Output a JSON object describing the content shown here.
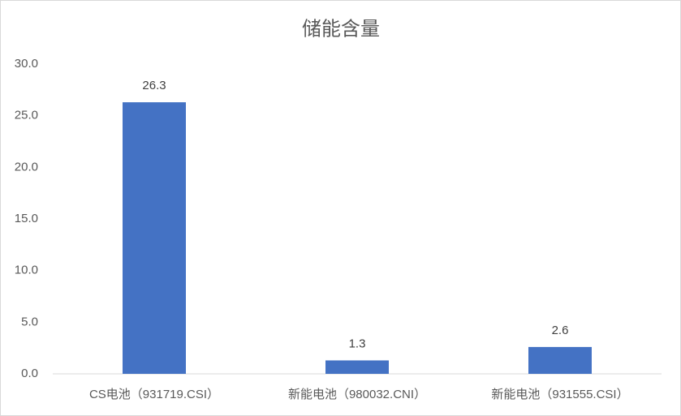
{
  "chart_data": {
    "type": "bar",
    "title": "储能含量",
    "categories": [
      "CS电池（931719.CSI）",
      "新能电池（980032.CNI）",
      "新能电池（931555.CSI）"
    ],
    "values": [
      26.3,
      1.3,
      2.6
    ],
    "color": "#4472c4",
    "ylim": [
      0,
      30
    ],
    "yticks": [
      {
        "value": 0,
        "label": "0.0"
      },
      {
        "value": 5,
        "label": "5.0"
      },
      {
        "value": 10,
        "label": "10.0"
      },
      {
        "value": 15,
        "label": "15.0"
      },
      {
        "value": 20,
        "label": "20.0"
      },
      {
        "value": 25,
        "label": "25.0"
      },
      {
        "value": 30,
        "label": "30.0"
      }
    ],
    "grid": false
  }
}
